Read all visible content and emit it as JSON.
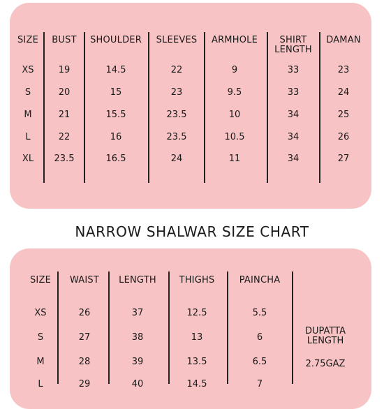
{
  "kameez": {
    "headers": [
      "SIZE",
      "BUST",
      "SHOULDER",
      "SLEEVES",
      "ARMHOLE",
      "SHIRT LENGTH",
      "DAMAN"
    ],
    "rows": [
      [
        "XS",
        "19",
        "14.5",
        "22",
        "9",
        "33",
        "23"
      ],
      [
        "S",
        "20",
        "15",
        "23",
        "9.5",
        "33",
        "24"
      ],
      [
        "M",
        "21",
        "15.5",
        "23.5",
        "10",
        "34",
        "25"
      ],
      [
        "L",
        "22",
        "16",
        "23.5",
        "10.5",
        "34",
        "26"
      ],
      [
        "XL",
        "23.5",
        "16.5",
        "24",
        "11",
        "34",
        "27"
      ]
    ]
  },
  "shalwar": {
    "title": "NARROW SHALWAR SIZE CHART",
    "headers": [
      "SIZE",
      "WAIST",
      "LENGTH",
      "THIGHS",
      "PAINCHA"
    ],
    "rows": [
      [
        "XS",
        "26",
        "37",
        "12.5",
        "5.5"
      ],
      [
        "S",
        "27",
        "38",
        "13",
        "6"
      ],
      [
        "M",
        "28",
        "39",
        "13.5",
        "6.5"
      ],
      [
        "L",
        "29",
        "40",
        "14.5",
        "7"
      ]
    ],
    "dupatta_label": "DUPATTA LENGTH",
    "dupatta_value": "2.75GAZ"
  }
}
